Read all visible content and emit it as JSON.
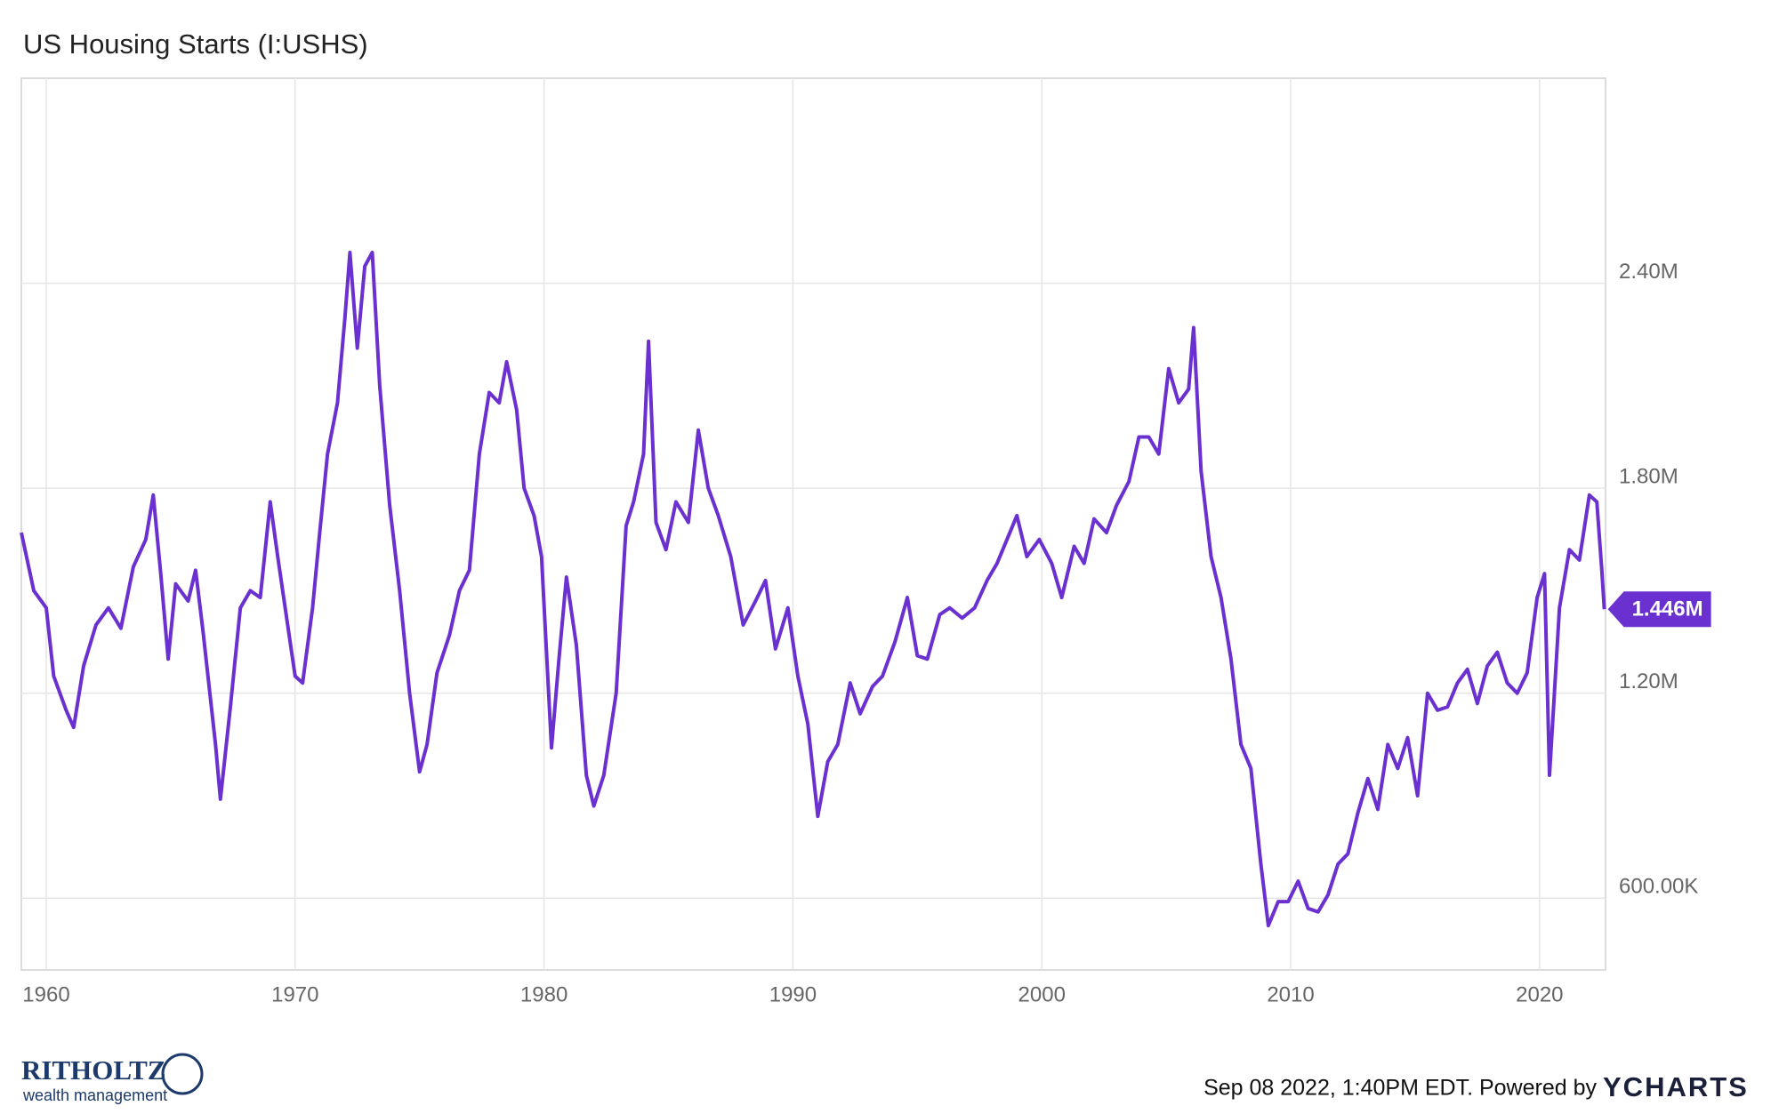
{
  "chart_data": {
    "type": "line",
    "title": "US Housing Starts (I:USHS)",
    "color": "#6a30d0",
    "x": [
      1959.0,
      1959.5,
      1960.0,
      1960.3,
      1960.8,
      1961.1,
      1961.5,
      1962.0,
      1962.5,
      1963.0,
      1963.5,
      1964.0,
      1964.3,
      1964.6,
      1964.9,
      1965.2,
      1965.7,
      1966.0,
      1966.3,
      1966.8,
      1967.0,
      1967.4,
      1967.8,
      1968.2,
      1968.6,
      1969.0,
      1969.3,
      1969.6,
      1970.0,
      1970.3,
      1970.7,
      1971.0,
      1971.3,
      1971.7,
      1972.0,
      1972.2,
      1972.5,
      1972.8,
      1973.1,
      1973.4,
      1973.8,
      1974.2,
      1974.6,
      1975.0,
      1975.3,
      1975.7,
      1976.2,
      1976.6,
      1977.0,
      1977.4,
      1977.8,
      1978.2,
      1978.5,
      1978.9,
      1979.2,
      1979.6,
      1979.9,
      1980.3,
      1980.6,
      1980.9,
      1981.3,
      1981.7,
      1982.0,
      1982.4,
      1982.9,
      1983.3,
      1983.6,
      1984.0,
      1984.2,
      1984.5,
      1984.9,
      1985.3,
      1985.8,
      1986.2,
      1986.6,
      1987.0,
      1987.5,
      1988.0,
      1988.5,
      1988.9,
      1989.3,
      1989.8,
      1990.2,
      1990.6,
      1991.0,
      1991.4,
      1991.8,
      1992.3,
      1992.7,
      1993.2,
      1993.6,
      1994.1,
      1994.6,
      1995.0,
      1995.4,
      1995.9,
      1996.3,
      1996.8,
      1997.3,
      1997.8,
      1998.2,
      1998.6,
      1999.0,
      1999.4,
      1999.9,
      2000.4,
      2000.8,
      2001.3,
      2001.7,
      2002.1,
      2002.6,
      2003.0,
      2003.5,
      2003.9,
      2004.3,
      2004.7,
      2005.1,
      2005.5,
      2005.9,
      2006.1,
      2006.4,
      2006.8,
      2007.2,
      2007.6,
      2008.0,
      2008.4,
      2008.8,
      2009.1,
      2009.5,
      2009.9,
      2010.3,
      2010.7,
      2011.1,
      2011.5,
      2011.9,
      2012.3,
      2012.7,
      2013.1,
      2013.5,
      2013.9,
      2014.3,
      2014.7,
      2015.1,
      2015.5,
      2015.9,
      2016.3,
      2016.7,
      2017.1,
      2017.5,
      2017.9,
      2018.3,
      2018.7,
      2019.1,
      2019.5,
      2019.9,
      2020.2,
      2020.4,
      2020.8,
      2021.2,
      2021.6,
      2022.0,
      2022.3,
      2022.5,
      2022.6
    ],
    "values": [
      1670000,
      1500000,
      1450000,
      1250000,
      1150000,
      1100000,
      1280000,
      1400000,
      1450000,
      1390000,
      1570000,
      1650000,
      1780000,
      1550000,
      1300000,
      1520000,
      1470000,
      1560000,
      1380000,
      1050000,
      890000,
      1160000,
      1450000,
      1500000,
      1480000,
      1760000,
      1600000,
      1450000,
      1250000,
      1230000,
      1450000,
      1680000,
      1900000,
      2050000,
      2300000,
      2490000,
      2210000,
      2450000,
      2490000,
      2100000,
      1750000,
      1500000,
      1200000,
      970000,
      1050000,
      1260000,
      1370000,
      1500000,
      1560000,
      1900000,
      2080000,
      2050000,
      2170000,
      2030000,
      1800000,
      1720000,
      1600000,
      1040000,
      1300000,
      1540000,
      1340000,
      960000,
      870000,
      960000,
      1200000,
      1690000,
      1760000,
      1900000,
      2230000,
      1700000,
      1620000,
      1760000,
      1700000,
      1970000,
      1800000,
      1720000,
      1600000,
      1400000,
      1470000,
      1530000,
      1330000,
      1450000,
      1250000,
      1110000,
      840000,
      1000000,
      1050000,
      1230000,
      1140000,
      1220000,
      1250000,
      1350000,
      1480000,
      1310000,
      1300000,
      1430000,
      1450000,
      1420000,
      1450000,
      1530000,
      1580000,
      1650000,
      1720000,
      1600000,
      1650000,
      1580000,
      1480000,
      1630000,
      1580000,
      1710000,
      1670000,
      1750000,
      1820000,
      1950000,
      1950000,
      1900000,
      2150000,
      2050000,
      2090000,
      2270000,
      1850000,
      1600000,
      1480000,
      1300000,
      1050000,
      980000,
      700000,
      520000,
      590000,
      590000,
      650000,
      570000,
      560000,
      610000,
      700000,
      730000,
      850000,
      950000,
      860000,
      1050000,
      980000,
      1070000,
      900000,
      1200000,
      1150000,
      1160000,
      1230000,
      1270000,
      1170000,
      1280000,
      1320000,
      1230000,
      1200000,
      1260000,
      1480000,
      1550000,
      960000,
      1450000,
      1620000,
      1590000,
      1780000,
      1760000,
      1560000,
      1446000
    ],
    "value_labels": [
      null,
      null,
      null,
      null,
      null,
      null,
      null,
      null,
      null,
      null,
      null,
      null,
      null,
      null,
      null,
      null,
      null,
      null,
      null,
      null,
      null,
      null,
      null,
      null,
      null,
      null,
      null,
      null,
      null,
      null,
      null,
      null,
      null,
      null,
      null,
      null,
      null,
      null,
      null,
      null,
      null,
      null,
      null,
      null,
      null,
      null,
      null,
      null,
      null,
      null,
      null,
      null,
      null,
      null,
      null,
      null,
      null,
      null,
      null,
      null,
      null,
      null,
      null,
      null,
      null,
      null,
      null,
      null,
      null,
      null,
      null,
      null,
      null,
      null,
      null,
      null,
      null,
      null,
      null,
      null,
      null,
      null,
      null,
      null,
      null,
      null,
      null,
      null,
      null,
      null,
      null,
      null,
      null,
      null,
      null,
      null,
      null,
      null,
      null,
      null,
      null,
      null,
      null,
      null,
      null,
      null,
      null,
      null,
      null,
      null,
      null,
      null,
      null,
      null,
      null,
      null,
      null,
      null,
      null,
      null,
      null,
      null,
      null,
      null,
      null,
      null,
      null,
      null,
      null,
      null,
      null,
      null,
      null,
      null,
      null,
      null,
      null,
      null,
      null,
      null,
      null,
      null,
      null,
      null,
      null,
      null,
      null,
      null,
      null,
      null,
      null,
      null,
      null,
      null,
      null,
      null,
      null,
      null,
      null,
      null,
      null,
      null,
      null,
      "1.446M"
    ],
    "xlim": [
      1959,
      2022.65
    ],
    "xticks": [
      1960,
      1970,
      1980,
      1990,
      2000,
      2010,
      2020
    ],
    "ylim": [
      390000,
      3000000
    ],
    "yticks": [
      {
        "value": 600000,
        "label": "600.00K"
      },
      {
        "value": 1200000,
        "label": "1.20M"
      },
      {
        "value": 1800000,
        "label": "1.80M"
      },
      {
        "value": 2400000,
        "label": "2.40M"
      }
    ],
    "grid": true
  },
  "footer": {
    "timestamp": "Sep 08 2022, 1:40PM EDT. Powered by",
    "brand": "YCHARTS"
  },
  "logo": {
    "name": "RITHOLTZ",
    "tagline": "wealth management"
  }
}
